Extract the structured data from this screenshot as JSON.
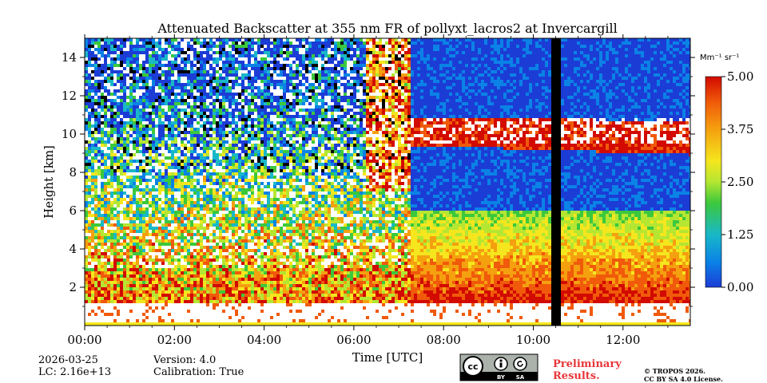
{
  "chart_data": {
    "type": "heatmap",
    "title": "Attenuated Backscatter at 355 nm FR of pollyxt_lacros2 at Invercargill",
    "xlabel": "Time [UTC]",
    "ylabel": "Height [km]",
    "xlim_hours": [
      0,
      13.5
    ],
    "ylim_km": [
      0,
      15
    ],
    "x_ticks": [
      {
        "value": 0,
        "label": "00:00"
      },
      {
        "value": 2,
        "label": "02:00"
      },
      {
        "value": 4,
        "label": "04:00"
      },
      {
        "value": 6,
        "label": "06:00"
      },
      {
        "value": 8,
        "label": "08:00"
      },
      {
        "value": 10,
        "label": "10:00"
      },
      {
        "value": 12,
        "label": "12:00"
      }
    ],
    "y_ticks": [
      {
        "value": 2,
        "label": "2"
      },
      {
        "value": 4,
        "label": "4"
      },
      {
        "value": 6,
        "label": "6"
      },
      {
        "value": 8,
        "label": "8"
      },
      {
        "value": 10,
        "label": "10"
      },
      {
        "value": 12,
        "label": "12"
      },
      {
        "value": 14,
        "label": "14"
      }
    ],
    "colorbar": {
      "unit": "Mm⁻¹ sr⁻¹",
      "min": 0.0,
      "max": 5.0,
      "ticks": [
        {
          "value": 0.0,
          "label": "0.00"
        },
        {
          "value": 1.25,
          "label": "1.25"
        },
        {
          "value": 2.5,
          "label": "2.50"
        },
        {
          "value": 3.75,
          "label": "3.75"
        },
        {
          "value": 5.0,
          "label": "5.00"
        }
      ],
      "colors": [
        "#1c3cd6",
        "#0a82e6",
        "#19b8c8",
        "#3cc83c",
        "#b4e632",
        "#f5e61e",
        "#f5a00f",
        "#f05a0a",
        "#d20a00"
      ]
    },
    "features": {
      "no_data_gap_hours": [
        10.4,
        10.55
      ],
      "cloud_layer_km": [
        9.5,
        11.0
      ],
      "boundary_layer_top_km": 3.0,
      "lowest_signal_km": 0.4
    }
  },
  "footer": {
    "date": "2026-03-25",
    "lc": "LC: 2.16e+13",
    "version": "Version: 4.0",
    "calibration": "Calibration: True",
    "preliminary_line1": "Preliminary",
    "preliminary_line2": "Results.",
    "copyright_line1": "© TROPOS 2026.",
    "copyright_line2": "CC BY SA 4.0 License.",
    "license_by": "BY",
    "license_sa": "SA"
  }
}
